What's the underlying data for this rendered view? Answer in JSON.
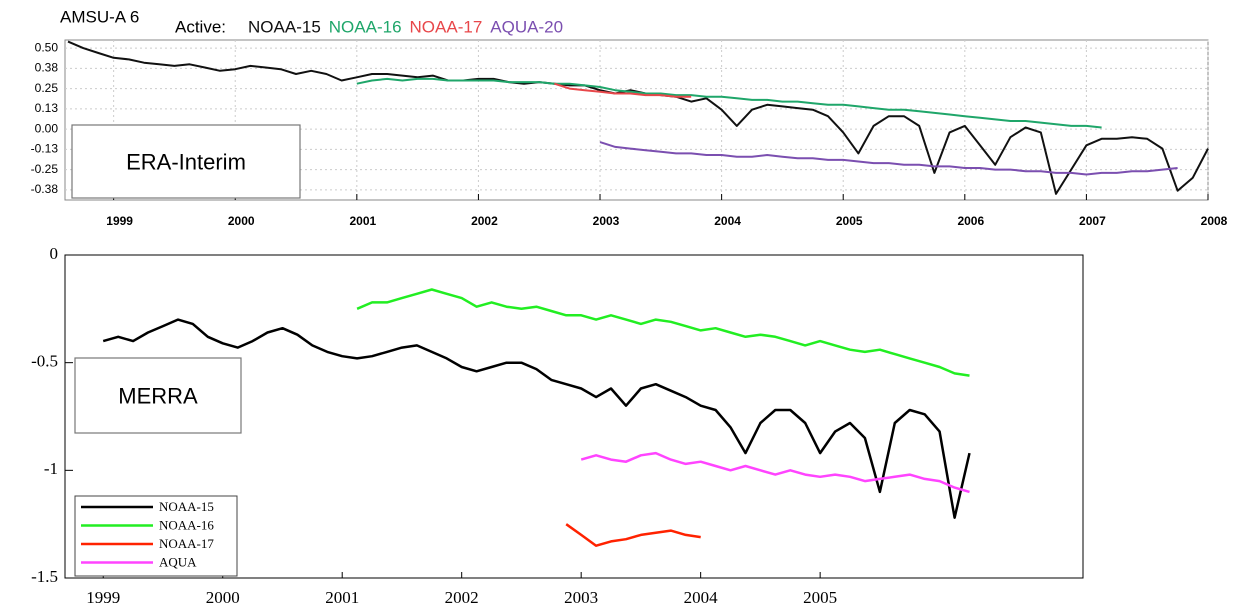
{
  "chart_data": [
    {
      "type": "line",
      "title": "AMSU-A 6",
      "legend_title": "Active:",
      "annotation": "ERA-Interim",
      "legend": "top",
      "grid": true,
      "x": [
        1998.625,
        1998.75,
        1998.875,
        1999,
        1999.125,
        1999.25,
        1999.375,
        1999.5,
        1999.625,
        1999.75,
        1999.875,
        2000,
        2000.125,
        2000.25,
        2000.375,
        2000.5,
        2000.625,
        2000.75,
        2000.875,
        2001,
        2001.125,
        2001.25,
        2001.375,
        2001.5,
        2001.625,
        2001.75,
        2001.875,
        2002,
        2002.125,
        2002.25,
        2002.375,
        2002.5,
        2002.625,
        2002.75,
        2002.875,
        2003,
        2003.125,
        2003.25,
        2003.375,
        2003.5,
        2003.625,
        2003.75,
        2003.875,
        2004,
        2004.125,
        2004.25,
        2004.375,
        2004.5,
        2004.625,
        2004.75,
        2004.875,
        2005,
        2005.125,
        2005.25,
        2005.375,
        2005.5,
        2005.625,
        2005.75,
        2005.875,
        2006,
        2006.125,
        2006.25,
        2006.375,
        2006.5,
        2006.625,
        2006.75,
        2006.875,
        2007,
        2007.125,
        2007.25,
        2007.375,
        2007.5,
        2007.625,
        2007.75,
        2007.875,
        2008
      ],
      "xlim": [
        1998.6,
        2008.0
      ],
      "xticks": [
        1999,
        2000,
        2001,
        2002,
        2003,
        2004,
        2005,
        2006,
        2007,
        2008
      ],
      "ylim": [
        -0.4375,
        0.55
      ],
      "yticks": [
        {
          "value": 0.5,
          "label": "0.50"
        },
        {
          "value": 0.375,
          "label": "0.38"
        },
        {
          "value": 0.25,
          "label": "0.25"
        },
        {
          "value": 0.125,
          "label": "0.13"
        },
        {
          "value": 0,
          "label": "0.00"
        },
        {
          "value": -0.125,
          "label": "-0.13"
        },
        {
          "value": -0.25,
          "label": "-0.25"
        },
        {
          "value": -0.375,
          "label": "-0.38"
        }
      ],
      "series": [
        {
          "name": "NOAA-15",
          "color": "#111111",
          "values": [
            0.54,
            0.5,
            0.47,
            0.44,
            0.43,
            0.41,
            0.4,
            0.39,
            0.4,
            0.38,
            0.36,
            0.37,
            0.39,
            0.38,
            0.37,
            0.34,
            0.36,
            0.34,
            0.3,
            0.32,
            0.34,
            0.34,
            0.33,
            0.32,
            0.33,
            0.3,
            0.3,
            0.31,
            0.31,
            0.29,
            0.28,
            0.29,
            0.28,
            0.27,
            0.27,
            0.24,
            0.22,
            0.24,
            0.22,
            0.21,
            0.2,
            0.17,
            0.19,
            0.12,
            0.02,
            0.12,
            0.15,
            0.14,
            0.13,
            0.12,
            0.08,
            -0.02,
            -0.15,
            0.02,
            0.08,
            0.08,
            0.02,
            -0.27,
            -0.02,
            0.02,
            -0.1,
            -0.22,
            -0.05,
            0.01,
            -0.02,
            -0.4,
            -0.25,
            -0.1,
            -0.06,
            -0.06,
            -0.05,
            -0.06,
            -0.12,
            -0.38,
            -0.3,
            -0.12
          ]
        },
        {
          "name": "NOAA-16",
          "color": "#1fa66a",
          "values": [
            null,
            null,
            null,
            null,
            null,
            null,
            null,
            null,
            null,
            null,
            null,
            null,
            null,
            null,
            null,
            null,
            null,
            null,
            null,
            0.28,
            0.3,
            0.31,
            0.3,
            0.31,
            0.31,
            0.3,
            0.3,
            0.3,
            0.3,
            0.29,
            0.29,
            0.29,
            0.28,
            0.28,
            0.27,
            0.26,
            0.24,
            0.23,
            0.22,
            0.22,
            0.21,
            0.21,
            0.2,
            0.2,
            0.19,
            0.18,
            0.18,
            0.17,
            0.17,
            0.16,
            0.15,
            0.15,
            0.14,
            0.13,
            0.12,
            0.12,
            0.11,
            0.1,
            0.09,
            0.08,
            0.07,
            0.06,
            0.05,
            0.05,
            0.04,
            0.03,
            0.02,
            0.02,
            0.01,
            null,
            null,
            null,
            null,
            null,
            null,
            null
          ]
        },
        {
          "name": "NOAA-17",
          "color": "#e8474a",
          "values": [
            null,
            null,
            null,
            null,
            null,
            null,
            null,
            null,
            null,
            null,
            null,
            null,
            null,
            null,
            null,
            null,
            null,
            null,
            null,
            null,
            null,
            null,
            null,
            null,
            null,
            null,
            null,
            null,
            null,
            null,
            null,
            null,
            0.28,
            0.25,
            0.24,
            0.23,
            0.22,
            0.22,
            0.21,
            0.21,
            0.2,
            0.2,
            null,
            null,
            null,
            null,
            null,
            null,
            null,
            null,
            null,
            null,
            null,
            null,
            null,
            null,
            null,
            null,
            null,
            null,
            null,
            null,
            null,
            null,
            null,
            null,
            null,
            null,
            null,
            null,
            null,
            null,
            null,
            null,
            null,
            null
          ]
        },
        {
          "name": "AQUA-20",
          "color": "#7b4fb0",
          "values": [
            null,
            null,
            null,
            null,
            null,
            null,
            null,
            null,
            null,
            null,
            null,
            null,
            null,
            null,
            null,
            null,
            null,
            null,
            null,
            null,
            null,
            null,
            null,
            null,
            null,
            null,
            null,
            null,
            null,
            null,
            null,
            null,
            null,
            null,
            null,
            -0.08,
            -0.11,
            -0.12,
            -0.13,
            -0.14,
            -0.15,
            -0.15,
            -0.16,
            -0.16,
            -0.17,
            -0.17,
            -0.16,
            -0.17,
            -0.18,
            -0.18,
            -0.19,
            -0.19,
            -0.2,
            -0.21,
            -0.21,
            -0.22,
            -0.22,
            -0.23,
            -0.23,
            -0.24,
            -0.24,
            -0.25,
            -0.25,
            -0.26,
            -0.26,
            -0.27,
            -0.27,
            -0.28,
            -0.27,
            -0.27,
            -0.26,
            -0.26,
            -0.25,
            -0.24,
            null,
            null
          ]
        }
      ]
    },
    {
      "type": "line",
      "annotation": "MERRA",
      "legend": "lower left",
      "grid": false,
      "x": [
        1999,
        1999.125,
        1999.25,
        1999.375,
        1999.5,
        1999.625,
        1999.75,
        1999.875,
        2000,
        2000.125,
        2000.25,
        2000.375,
        2000.5,
        2000.625,
        2000.75,
        2000.875,
        2001,
        2001.125,
        2001.25,
        2001.375,
        2001.5,
        2001.625,
        2001.75,
        2001.875,
        2002,
        2002.125,
        2002.25,
        2002.375,
        2002.5,
        2002.625,
        2002.75,
        2002.875,
        2003,
        2003.125,
        2003.25,
        2003.375,
        2003.5,
        2003.625,
        2003.75,
        2003.875,
        2004,
        2004.125,
        2004.25,
        2004.375,
        2004.5,
        2004.625,
        2004.75,
        2004.875,
        2005,
        2005.125,
        2005.25,
        2005.375,
        2005.5,
        2005.625,
        2005.75,
        2005.875,
        2006,
        2006.125,
        2006.25
      ],
      "xlim": [
        1998.68,
        2007.2
      ],
      "xticks": [
        1999,
        2000,
        2001,
        2002,
        2003,
        2004,
        2005
      ],
      "ylim": [
        -1.5,
        0
      ],
      "yticks": [
        0,
        -0.5,
        -1,
        -1.5
      ],
      "series": [
        {
          "name": "NOAA-15",
          "color": "#000000",
          "values": [
            -0.4,
            -0.38,
            -0.4,
            -0.36,
            -0.33,
            -0.3,
            -0.32,
            -0.38,
            -0.41,
            -0.43,
            -0.4,
            -0.36,
            -0.34,
            -0.37,
            -0.42,
            -0.45,
            -0.47,
            -0.48,
            -0.47,
            -0.45,
            -0.43,
            -0.42,
            -0.45,
            -0.48,
            -0.52,
            -0.54,
            -0.52,
            -0.5,
            -0.5,
            -0.53,
            -0.58,
            -0.6,
            -0.62,
            -0.66,
            -0.62,
            -0.7,
            -0.62,
            -0.6,
            -0.63,
            -0.66,
            -0.7,
            -0.72,
            -0.8,
            -0.92,
            -0.78,
            -0.72,
            -0.72,
            -0.78,
            -0.92,
            -0.82,
            -0.78,
            -0.85,
            -1.1,
            -0.78,
            -0.72,
            -0.74,
            -0.82,
            -1.22,
            -0.92
          ]
        },
        {
          "name": "NOAA-16",
          "color": "#22ee22",
          "values": [
            null,
            null,
            null,
            null,
            null,
            null,
            null,
            null,
            null,
            null,
            null,
            null,
            null,
            null,
            null,
            null,
            null,
            -0.25,
            -0.22,
            -0.22,
            -0.2,
            -0.18,
            -0.16,
            -0.18,
            -0.2,
            -0.24,
            -0.22,
            -0.24,
            -0.25,
            -0.24,
            -0.26,
            -0.28,
            -0.28,
            -0.3,
            -0.28,
            -0.3,
            -0.32,
            -0.3,
            -0.31,
            -0.33,
            -0.35,
            -0.34,
            -0.36,
            -0.38,
            -0.37,
            -0.38,
            -0.4,
            -0.42,
            -0.4,
            -0.42,
            -0.44,
            -0.45,
            -0.44,
            -0.46,
            -0.48,
            -0.5,
            -0.52,
            -0.55,
            -0.56
          ]
        },
        {
          "name": "NOAA-17",
          "color": "#ff2200",
          "values": [
            null,
            null,
            null,
            null,
            null,
            null,
            null,
            null,
            null,
            null,
            null,
            null,
            null,
            null,
            null,
            null,
            null,
            null,
            null,
            null,
            null,
            null,
            null,
            null,
            null,
            null,
            null,
            null,
            null,
            null,
            null,
            -1.25,
            -1.3,
            -1.35,
            -1.33,
            -1.32,
            -1.3,
            -1.29,
            -1.28,
            -1.3,
            -1.31,
            null,
            null,
            null,
            null,
            null,
            null,
            null,
            null,
            null,
            null,
            null,
            null,
            null,
            null,
            null,
            null,
            null,
            null
          ]
        },
        {
          "name": "AQUA",
          "color": "#ff44ff",
          "values": [
            null,
            null,
            null,
            null,
            null,
            null,
            null,
            null,
            null,
            null,
            null,
            null,
            null,
            null,
            null,
            null,
            null,
            null,
            null,
            null,
            null,
            null,
            null,
            null,
            null,
            null,
            null,
            null,
            null,
            null,
            null,
            null,
            -0.95,
            -0.93,
            -0.95,
            -0.96,
            -0.93,
            -0.92,
            -0.95,
            -0.97,
            -0.96,
            -0.98,
            -1.0,
            -0.98,
            -1.0,
            -1.02,
            -1.0,
            -1.02,
            -1.03,
            -1.02,
            -1.03,
            -1.05,
            -1.04,
            -1.03,
            -1.02,
            -1.04,
            -1.05,
            -1.08,
            -1.1
          ]
        }
      ]
    }
  ]
}
